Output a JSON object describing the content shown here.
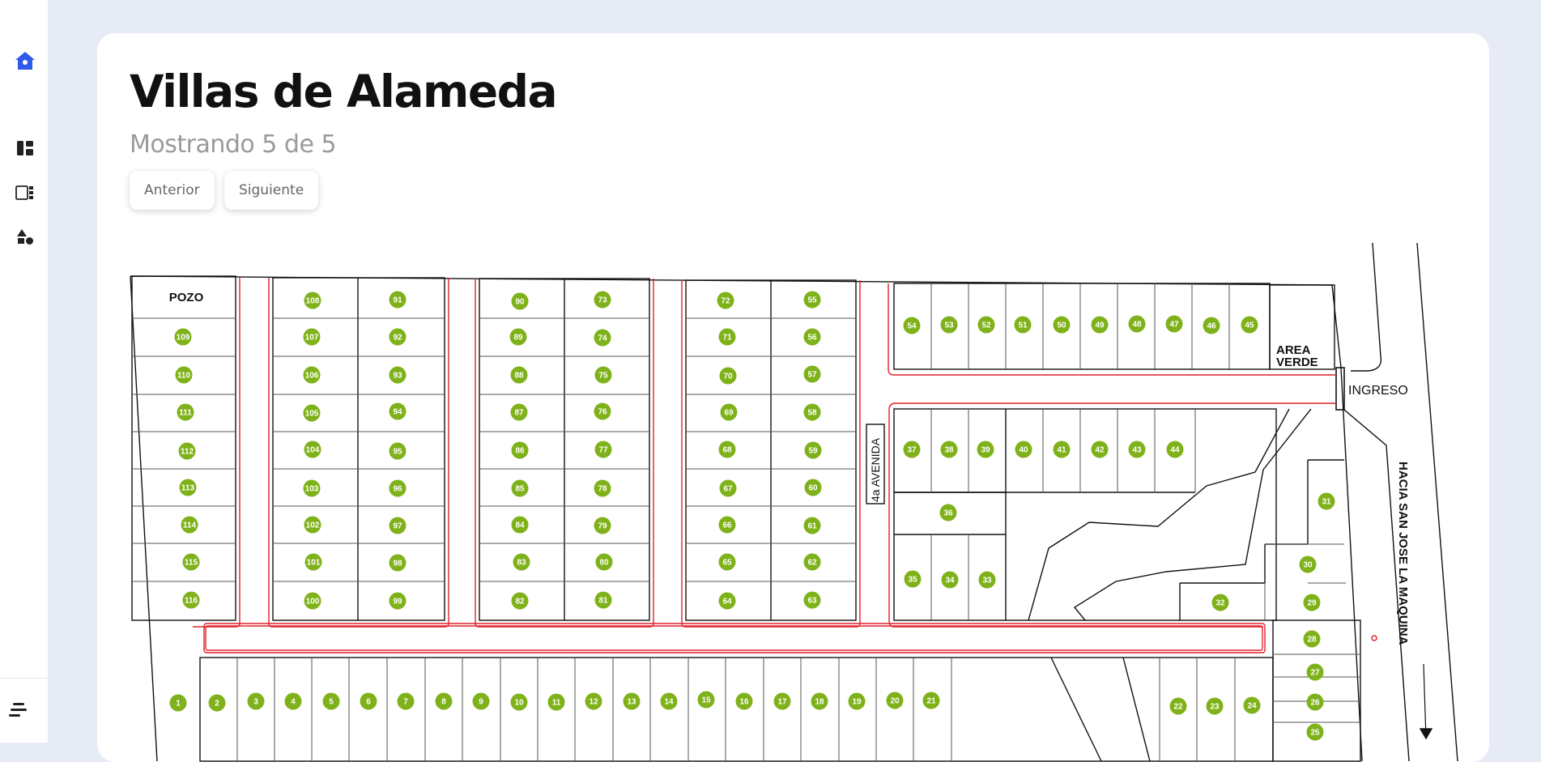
{
  "page": {
    "title": "Villas de Alameda",
    "subtitle": "Mostrando 5 de 5",
    "prev_label": "Anterior",
    "next_label": "Siguiente"
  },
  "sidebar": {
    "items": [
      {
        "icon": "home-icon",
        "active": true
      },
      {
        "icon": "dashboard-icon"
      },
      {
        "icon": "layout-list-icon"
      },
      {
        "icon": "shapes-icon"
      }
    ],
    "bottom_icon": "menu-icon"
  },
  "map": {
    "labels": {
      "pozo": "POZO",
      "area_verde_1": "AREA",
      "area_verde_2": "VERDE",
      "ingreso": "INGRESO",
      "avenida": "4a AVENIDA",
      "hacia": "HACIA SAN JOSE LA MAQUINA"
    },
    "colors": {
      "lot": "#7fb21a",
      "road": "#e0202a",
      "accent": "#2f5bea"
    },
    "lots": [
      "1",
      "2",
      "3",
      "4",
      "5",
      "6",
      "7",
      "8",
      "9",
      "10",
      "11",
      "12",
      "13",
      "14",
      "15",
      "16",
      "17",
      "18",
      "19",
      "20",
      "21",
      "22",
      "23",
      "24",
      "25",
      "26",
      "27",
      "28",
      "29",
      "30",
      "31",
      "32",
      "33",
      "34",
      "35",
      "36",
      "37",
      "38",
      "39",
      "40",
      "41",
      "42",
      "43",
      "44",
      "45",
      "46",
      "47",
      "48",
      "49",
      "50",
      "51",
      "52",
      "53",
      "54",
      "55",
      "56",
      "57",
      "58",
      "59",
      "60",
      "61",
      "62",
      "63",
      "64",
      "65",
      "66",
      "67",
      "68",
      "69",
      "70",
      "71",
      "72",
      "73",
      "74",
      "75",
      "76",
      "77",
      "78",
      "79",
      "80",
      "81",
      "82",
      "83",
      "84",
      "85",
      "86",
      "87",
      "88",
      "89",
      "90",
      "91",
      "92",
      "93",
      "94",
      "95",
      "96",
      "97",
      "98",
      "99",
      "100",
      "101",
      "102",
      "103",
      "104",
      "105",
      "106",
      "107",
      "108",
      "109",
      "110",
      "111",
      "112",
      "113",
      "114",
      "115",
      "116"
    ]
  }
}
